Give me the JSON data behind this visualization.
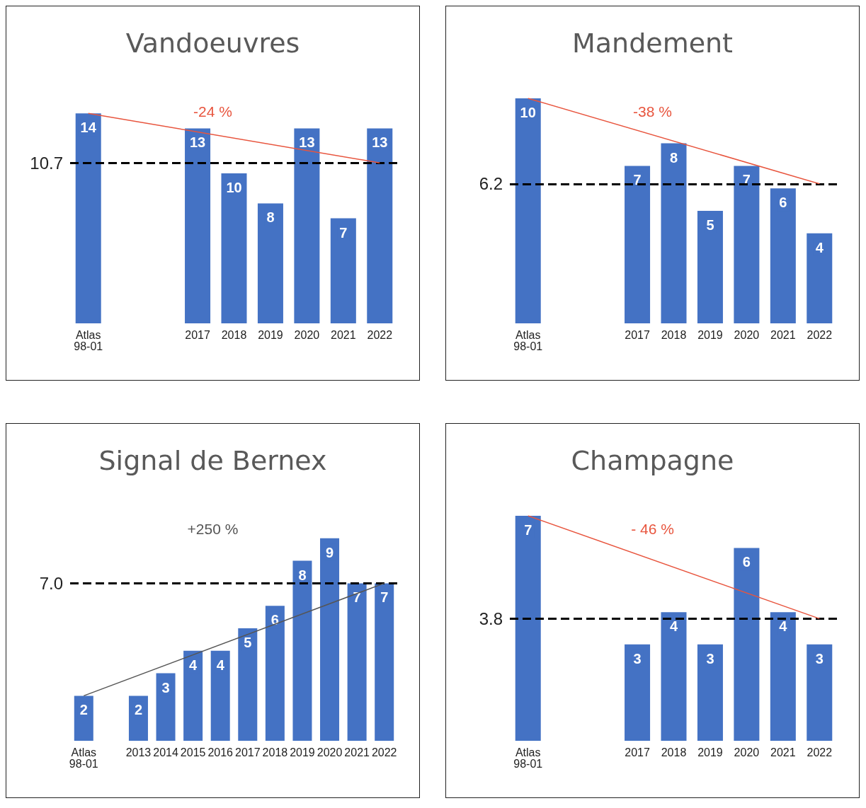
{
  "chart_data": [
    {
      "type": "bar",
      "title": "Vandoeuvres",
      "categories": [
        "Atlas\n98-01",
        null,
        null,
        "2017",
        "2018",
        "2019",
        "2020",
        "2021",
        "2022"
      ],
      "grid": false,
      "tick_labels": "x",
      "series": [
        {
          "type": "bar",
          "color": "#4472c4",
          "values": [
            14,
            null,
            null,
            13,
            10,
            8,
            13,
            7,
            13
          ],
          "value_labels": [
            "14",
            null,
            null,
            "13",
            "10",
            "8",
            "13",
            "7",
            "13"
          ]
        },
        {
          "type": "line",
          "color": "#e8553e",
          "values": [
            14,
            null,
            null,
            null,
            null,
            null,
            null,
            null,
            10.7
          ]
        }
      ],
      "ref_lines": [
        {
          "axis": "y",
          "value": 10.7,
          "label": "10.7",
          "color": "#000000",
          "line_style": "dashed"
        }
      ],
      "annotations": [
        "-24 %"
      ]
    },
    {
      "type": "bar",
      "title": "Mandement",
      "categories": [
        "Atlas\n98-01",
        null,
        null,
        "2017",
        "2018",
        "2019",
        "2020",
        "2021",
        "2022"
      ],
      "grid": false,
      "tick_labels": "x",
      "series": [
        {
          "type": "bar",
          "color": "#4472c4",
          "values": [
            10,
            null,
            null,
            7,
            8,
            5,
            7,
            6,
            4
          ],
          "value_labels": [
            "10",
            null,
            null,
            "7",
            "8",
            "5",
            "7",
            "6",
            "4"
          ]
        },
        {
          "type": "line",
          "color": "#e8553e",
          "values": [
            10,
            null,
            null,
            null,
            null,
            null,
            null,
            null,
            6.2
          ]
        }
      ],
      "ref_lines": [
        {
          "axis": "y",
          "value": 6.2,
          "label": "6.2",
          "color": "#000000",
          "line_style": "dashed"
        }
      ],
      "annotations": [
        "-38 %"
      ]
    },
    {
      "type": "bar",
      "title": "Signal de Bernex",
      "categories": [
        "Atlas\n98-01",
        null,
        "2013",
        "2014",
        "2015",
        "2016",
        "2017",
        "2018",
        "2019",
        "2020",
        "2021",
        "2022"
      ],
      "grid": false,
      "tick_labels": "x",
      "series": [
        {
          "type": "bar",
          "color": "#4472c4",
          "values": [
            2,
            null,
            2,
            3,
            4,
            4,
            5,
            6,
            8,
            9,
            7,
            7
          ],
          "value_labels": [
            "2",
            null,
            "2",
            "3",
            "4",
            "4",
            "5",
            "6",
            "8",
            "9",
            "7",
            "7"
          ]
        },
        {
          "type": "line",
          "color": "#555555",
          "values": [
            2,
            null,
            null,
            null,
            null,
            null,
            null,
            null,
            null,
            null,
            null,
            7
          ]
        }
      ],
      "ref_lines": [
        {
          "axis": "y",
          "value": 7.0,
          "label": "7.0",
          "color": "#000000",
          "line_style": "dashed"
        }
      ],
      "annotations": [
        "+250 %"
      ]
    },
    {
      "type": "bar",
      "title": "Champagne",
      "categories": [
        "Atlas\n98-01",
        null,
        null,
        "2017",
        "2018",
        "2019",
        "2020",
        "2021",
        "2022"
      ],
      "grid": false,
      "tick_labels": "x",
      "series": [
        {
          "type": "bar",
          "color": "#4472c4",
          "values": [
            7,
            null,
            null,
            3,
            4,
            3,
            6,
            4,
            3
          ],
          "value_labels": [
            "7",
            null,
            null,
            "3",
            "4",
            "3",
            "6",
            "4",
            "3"
          ]
        },
        {
          "type": "line",
          "color": "#e8553e",
          "values": [
            7,
            null,
            null,
            null,
            null,
            null,
            null,
            null,
            3.8
          ]
        }
      ],
      "ref_lines": [
        {
          "axis": "y",
          "value": 3.8,
          "label": "3.8",
          "color": "#000000",
          "line_style": "dashed"
        }
      ],
      "annotations": [
        "- 46 %"
      ]
    }
  ]
}
